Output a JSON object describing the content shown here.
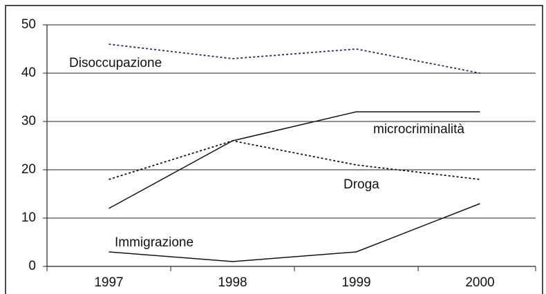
{
  "chart_data": {
    "type": "line",
    "categories": [
      "1997",
      "1998",
      "1999",
      "2000"
    ],
    "series": [
      {
        "name": "Disoccupazione",
        "color": "#2a2a5a",
        "dash": true,
        "values": [
          46,
          43,
          45,
          40
        ]
      },
      {
        "name": "microcriminalità",
        "color": "#111111",
        "dash": false,
        "values": [
          12,
          26,
          32,
          32
        ]
      },
      {
        "name": "Droga",
        "color": "#111111",
        "dash": true,
        "values": [
          18,
          26,
          21,
          18
        ]
      },
      {
        "name": "Immigrazione",
        "color": "#111111",
        "dash": false,
        "values": [
          3,
          1,
          3,
          13
        ]
      }
    ],
    "ylim": [
      0,
      50
    ],
    "yticks": [
      0,
      10,
      20,
      30,
      40,
      50
    ],
    "grid": true
  }
}
